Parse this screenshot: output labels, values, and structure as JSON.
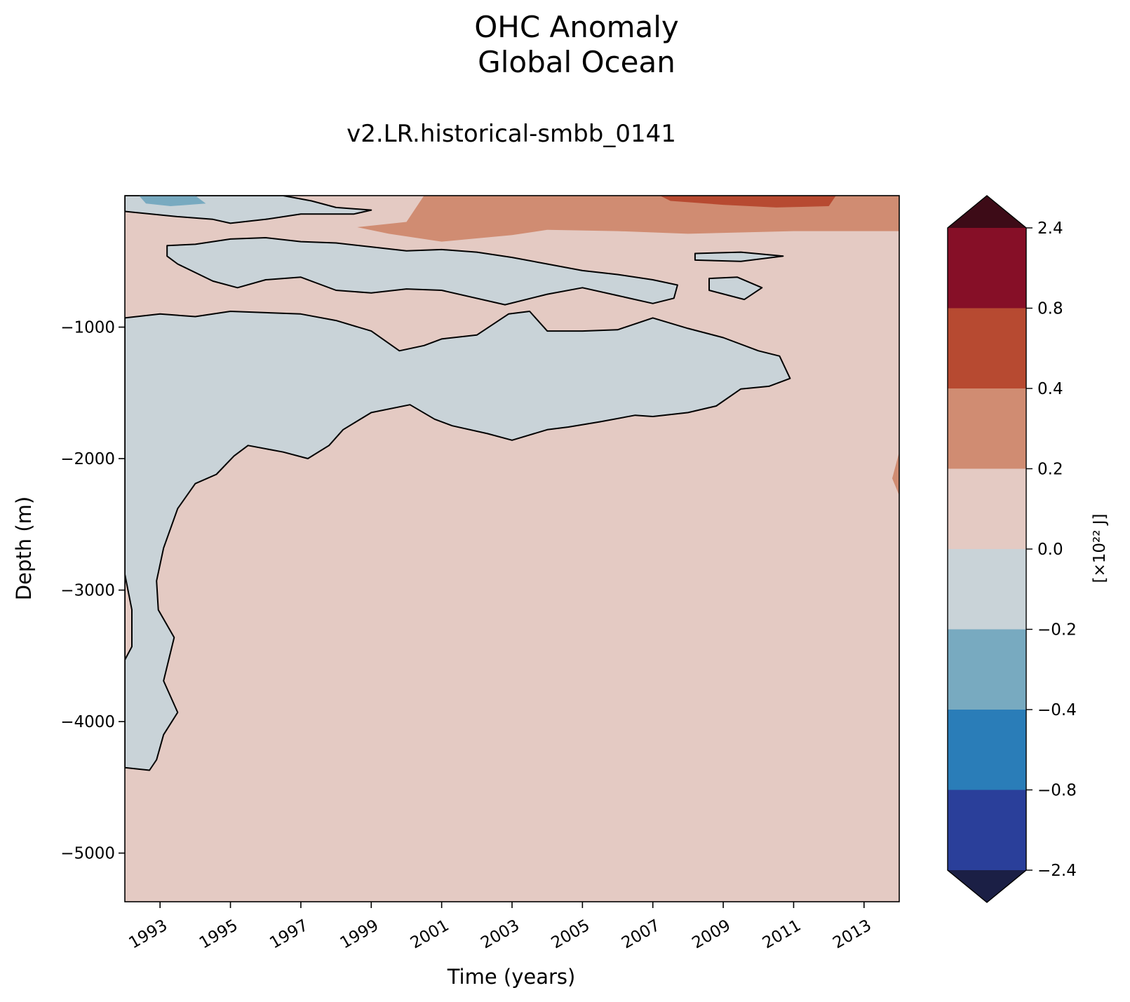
{
  "chart_data": {
    "type": "contourf",
    "title_lines": [
      "OHC Anomaly",
      "Global Ocean"
    ],
    "subtitle": "v2.LR.historical-smbb_0141",
    "xlabel": "Time (years)",
    "ylabel": "Depth (m)",
    "xlim": [
      1992.0,
      2014.0
    ],
    "ylim": [
      -5370,
      0
    ],
    "x_ticks": [
      1993,
      1995,
      1997,
      1999,
      2001,
      2003,
      2005,
      2007,
      2009,
      2011,
      2013
    ],
    "x_tick_labels": [
      "1993",
      "1995",
      "1997",
      "1999",
      "2001",
      "2003",
      "2005",
      "2007",
      "2009",
      "2011",
      "2013"
    ],
    "y_ticks": [
      -1000,
      -2000,
      -3000,
      -4000,
      -5000
    ],
    "y_tick_labels": [
      "−1000",
      "−2000",
      "−3000",
      "−4000",
      "−5000"
    ],
    "colorbar": {
      "label": "[×10²² J]",
      "extend": "both",
      "levels": [
        -2.4,
        -0.8,
        -0.4,
        -0.2,
        0.0,
        0.2,
        0.4,
        0.8,
        2.4
      ],
      "level_labels": [
        "−2.4",
        "−0.8",
        "−0.4",
        "−0.2",
        "0.0",
        "0.2",
        "0.4",
        "0.8",
        "2.4"
      ],
      "colors": [
        "#2a3f9a",
        "#2a7db8",
        "#78aac0",
        "#c9d3d8",
        "#e4cac3",
        "#d08c72",
        "#b74a31",
        "#860f27"
      ],
      "under_color": "#1b1f45",
      "over_color": "#3d0b17"
    },
    "background_band": "0.0 to 0.2",
    "contour_line_level": 0.0,
    "regions": [
      {
        "band": "-0.2 to 0.0",
        "description": "main negative tongue",
        "outline": [
          [
            1992.0,
            -930
          ],
          [
            1993.0,
            -900
          ],
          [
            1994.0,
            -920
          ],
          [
            1995.0,
            -880
          ],
          [
            1996.0,
            -890
          ],
          [
            1997.0,
            -900
          ],
          [
            1998.0,
            -950
          ],
          [
            1999.0,
            -1030
          ],
          [
            1999.8,
            -1180
          ],
          [
            2000.5,
            -1140
          ],
          [
            2001.0,
            -1090
          ],
          [
            2002.0,
            -1060
          ],
          [
            2002.9,
            -900
          ],
          [
            2003.5,
            -880
          ],
          [
            2004.0,
            -1030
          ],
          [
            2005.0,
            -1030
          ],
          [
            2006.0,
            -1020
          ],
          [
            2007.0,
            -930
          ],
          [
            2008.0,
            -1010
          ],
          [
            2009.0,
            -1080
          ],
          [
            2010.0,
            -1180
          ],
          [
            2010.6,
            -1220
          ],
          [
            2010.9,
            -1390
          ],
          [
            2010.3,
            -1450
          ],
          [
            2009.5,
            -1470
          ],
          [
            2008.8,
            -1600
          ],
          [
            2008.0,
            -1650
          ],
          [
            2007.0,
            -1680
          ],
          [
            2006.5,
            -1670
          ],
          [
            2005.5,
            -1720
          ],
          [
            2004.6,
            -1760
          ],
          [
            2004.0,
            -1780
          ],
          [
            2003.0,
            -1860
          ],
          [
            2002.3,
            -1810
          ],
          [
            2001.3,
            -1750
          ],
          [
            2000.8,
            -1700
          ],
          [
            2000.1,
            -1590
          ],
          [
            1999.0,
            -1650
          ],
          [
            1998.2,
            -1780
          ],
          [
            1997.8,
            -1900
          ],
          [
            1997.2,
            -2000
          ],
          [
            1996.5,
            -1950
          ],
          [
            1995.5,
            -1900
          ],
          [
            1995.1,
            -1980
          ],
          [
            1994.6,
            -2120
          ],
          [
            1994.0,
            -2190
          ],
          [
            1993.5,
            -2380
          ],
          [
            1993.1,
            -2680
          ],
          [
            1992.9,
            -2930
          ],
          [
            1992.95,
            -3150
          ],
          [
            1993.4,
            -3360
          ],
          [
            1993.1,
            -3690
          ],
          [
            1993.5,
            -3930
          ],
          [
            1993.1,
            -4100
          ],
          [
            1992.9,
            -4290
          ],
          [
            1992.7,
            -4370
          ],
          [
            1992.0,
            -4350
          ]
        ]
      },
      {
        "band": "0.0 to 0.2",
        "description": "positive tongue at ~1992, 2900-3500 m",
        "outline": [
          [
            1992.0,
            -2880
          ],
          [
            1992.2,
            -3150
          ],
          [
            1992.2,
            -3430
          ],
          [
            1992.0,
            -3530
          ]
        ]
      },
      {
        "band": "-0.2 to 0.0",
        "description": "upper negative band",
        "outline": [
          [
            1993.2,
            -380
          ],
          [
            1994.0,
            -370
          ],
          [
            1995.0,
            -330
          ],
          [
            1996.0,
            -320
          ],
          [
            1997.0,
            -350
          ],
          [
            1998.0,
            -360
          ],
          [
            1999.0,
            -390
          ],
          [
            2000.0,
            -420
          ],
          [
            2001.0,
            -410
          ],
          [
            2002.0,
            -430
          ],
          [
            2003.0,
            -470
          ],
          [
            2004.0,
            -520
          ],
          [
            2005.0,
            -570
          ],
          [
            2006.0,
            -600
          ],
          [
            2007.0,
            -640
          ],
          [
            2007.7,
            -680
          ],
          [
            2007.6,
            -780
          ],
          [
            2007.0,
            -820
          ],
          [
            2006.0,
            -760
          ],
          [
            2005.0,
            -700
          ],
          [
            2004.0,
            -750
          ],
          [
            2002.8,
            -830
          ],
          [
            2001.0,
            -720
          ],
          [
            2000.0,
            -710
          ],
          [
            1999.0,
            -740
          ],
          [
            1998.0,
            -720
          ],
          [
            1997.0,
            -620
          ],
          [
            1996.0,
            -640
          ],
          [
            1995.2,
            -700
          ],
          [
            1994.5,
            -650
          ],
          [
            1993.5,
            -520
          ],
          [
            1993.2,
            -460
          ]
        ]
      },
      {
        "band": "-0.2 to 0.0",
        "description": "surface negative strip",
        "outline": [
          [
            1992.0,
            0
          ],
          [
            1996.5,
            0
          ],
          [
            1997.3,
            -40
          ],
          [
            1998.0,
            -90
          ],
          [
            1999.0,
            -110
          ],
          [
            1998.5,
            -140
          ],
          [
            1997.0,
            -140
          ],
          [
            1996.0,
            -180
          ],
          [
            1995.0,
            -210
          ],
          [
            1994.5,
            -180
          ],
          [
            1993.5,
            -160
          ],
          [
            1992.0,
            -120
          ]
        ]
      },
      {
        "band": "-0.4 to -0.2",
        "description": "surface patch",
        "outline": [
          [
            1992.4,
            0
          ],
          [
            1994.0,
            0
          ],
          [
            1994.3,
            -60
          ],
          [
            1993.3,
            -80
          ],
          [
            1992.6,
            -60
          ]
        ]
      },
      {
        "band": "-0.2 to 0.0",
        "description": "small lens 2008-2010",
        "outline": [
          [
            2008.2,
            -440
          ],
          [
            2009.5,
            -430
          ],
          [
            2010.7,
            -460
          ],
          [
            2009.5,
            -500
          ],
          [
            2008.2,
            -490
          ]
        ]
      },
      {
        "band": "-0.2 to 0.0",
        "description": "small lens 2009",
        "outline": [
          [
            2008.6,
            -630
          ],
          [
            2009.4,
            -620
          ],
          [
            2010.1,
            -700
          ],
          [
            2009.6,
            -790
          ],
          [
            2008.6,
            -720
          ]
        ]
      },
      {
        "band": "0.2 to 0.4",
        "description": "upper warm layer",
        "outline": [
          [
            2000.5,
            0
          ],
          [
            2014.0,
            0
          ],
          [
            2014.0,
            -270
          ],
          [
            2011.0,
            -270
          ],
          [
            2008.0,
            -290
          ],
          [
            2006.0,
            -270
          ],
          [
            2004.0,
            -260
          ],
          [
            2003.0,
            -300
          ],
          [
            2001.0,
            -350
          ],
          [
            1999.5,
            -290
          ],
          [
            1998.6,
            -240
          ],
          [
            2000.0,
            -200
          ]
        ]
      },
      {
        "band": "0.4 to 0.8",
        "description": "surface warm patches 2007-2012",
        "outline": [
          [
            2007.2,
            0
          ],
          [
            2012.2,
            0
          ],
          [
            2012.0,
            -80
          ],
          [
            2010.5,
            -90
          ],
          [
            2009.0,
            -70
          ],
          [
            2007.5,
            -40
          ]
        ]
      },
      {
        "band": "0.2 to 0.4",
        "description": "deep edge patch near 2014",
        "outline": [
          [
            2014.0,
            -1950
          ],
          [
            2013.8,
            -2150
          ],
          [
            2014.0,
            -2280
          ]
        ]
      }
    ]
  }
}
